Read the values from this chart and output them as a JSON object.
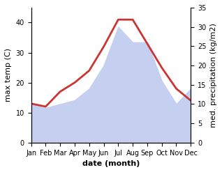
{
  "months": [
    "Jan",
    "Feb",
    "Mar",
    "Apr",
    "May",
    "Jun",
    "Jul",
    "Aug",
    "Sep",
    "Oct",
    "Nov",
    "Dec"
  ],
  "x": [
    1,
    2,
    3,
    4,
    5,
    6,
    7,
    8,
    9,
    10,
    11,
    12
  ],
  "temp": [
    13,
    12,
    17,
    20,
    24,
    32,
    41,
    41,
    33,
    25,
    18,
    14
  ],
  "precip": [
    10,
    9,
    10,
    11,
    14,
    20,
    30,
    26,
    26,
    16,
    10,
    14
  ],
  "temp_color": "#cc3333",
  "precip_fill_color": "#c5d0f0",
  "background_color": "#ffffff",
  "ylabel_left": "max temp (C)",
  "ylabel_right": "med. precipitation (kg/m2)",
  "xlabel": "date (month)",
  "ylim_left": [
    0,
    45
  ],
  "ylim_right": [
    0,
    35
  ],
  "left_yticks": [
    0,
    10,
    20,
    30,
    40
  ],
  "right_yticks": [
    0,
    5,
    10,
    15,
    20,
    25,
    30,
    35
  ],
  "temp_linewidth": 2.0,
  "label_fontsize": 8,
  "tick_fontsize": 7
}
